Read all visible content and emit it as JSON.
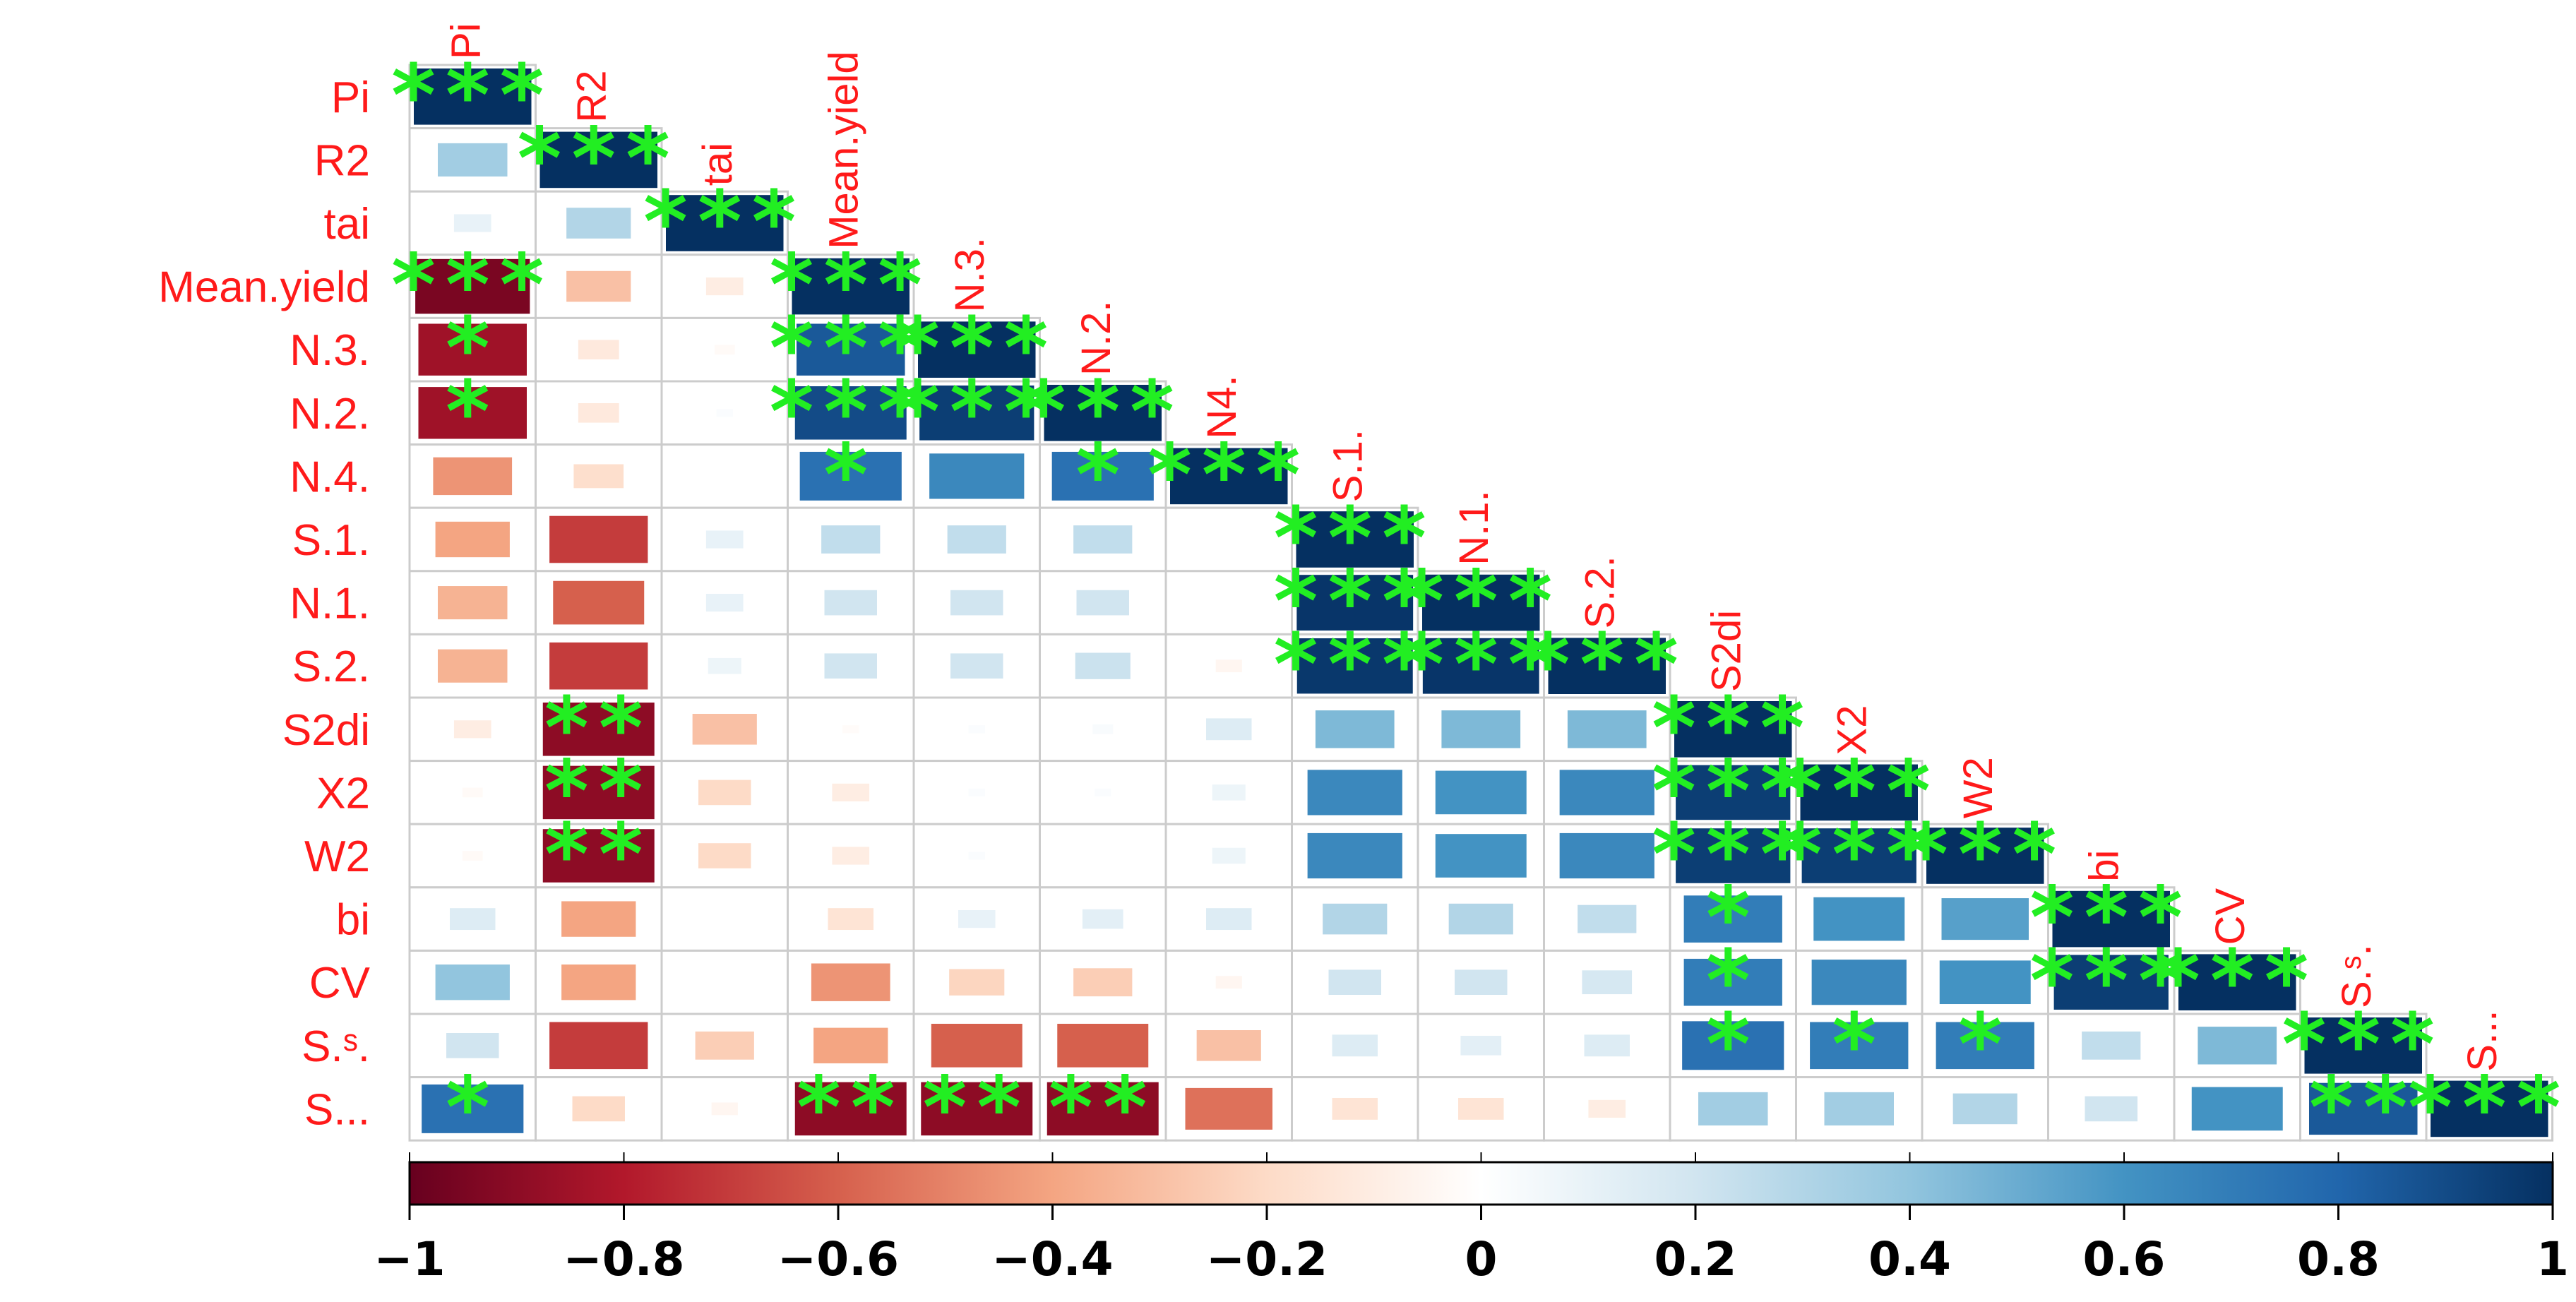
{
  "chart_data": {
    "type": "heatmap",
    "title": "",
    "variables": [
      "Pi",
      "R2",
      "tai",
      "Mean.yield",
      "N.3.",
      "N.2.",
      "N.4.",
      "S.1.",
      "N.1.",
      "S.2.",
      "S2di",
      "X2",
      "W2",
      "bi",
      "CV",
      "S.ˢ.",
      "S..."
    ],
    "top_labels": [
      "Pi",
      "R2",
      "tai",
      "Mean.yield",
      "N.3.",
      "N.2.",
      "N4.",
      "S.1.",
      "N.1.",
      "S.2.",
      "S2di",
      "X2",
      "W2",
      "bi",
      "CV",
      "S.ˢ.",
      "S..."
    ],
    "matrix_lower": [
      [
        1
      ],
      [
        0.35,
        1
      ],
      [
        0.1,
        0.3,
        1
      ],
      [
        -0.95,
        -0.3,
        -0.1,
        1
      ],
      [
        -0.85,
        -0.12,
        -0.03,
        0.85,
        1
      ],
      [
        -0.85,
        -0.12,
        0.02,
        0.9,
        0.95,
        1
      ],
      [
        -0.45,
        -0.18,
        0.0,
        0.75,
        0.65,
        0.75,
        1
      ],
      [
        -0.4,
        -0.7,
        0.1,
        0.25,
        0.25,
        0.25,
        0.0,
        1
      ],
      [
        -0.35,
        -0.6,
        0.1,
        0.2,
        0.2,
        0.2,
        0.0,
        0.98,
        1
      ],
      [
        -0.35,
        -0.7,
        0.08,
        0.2,
        0.2,
        0.22,
        -0.05,
        0.97,
        0.98,
        1
      ],
      [
        -0.1,
        -0.9,
        -0.3,
        -0.02,
        0.02,
        0.03,
        0.15,
        0.45,
        0.45,
        0.45,
        1
      ],
      [
        -0.03,
        -0.9,
        -0.2,
        -0.1,
        0.02,
        0.02,
        0.08,
        0.65,
        0.6,
        0.65,
        0.95,
        1
      ],
      [
        -0.03,
        -0.9,
        -0.2,
        -0.1,
        0.02,
        0.0,
        0.08,
        0.65,
        0.6,
        0.65,
        0.95,
        0.95,
        1
      ],
      [
        0.15,
        -0.4,
        0.0,
        -0.15,
        0.1,
        0.12,
        0.15,
        0.3,
        0.3,
        0.25,
        0.7,
        0.6,
        0.55,
        1
      ],
      [
        0.4,
        -0.4,
        0.0,
        -0.45,
        -0.22,
        -0.25,
        -0.05,
        0.2,
        0.2,
        0.18,
        0.7,
        0.65,
        0.6,
        0.95,
        1
      ],
      [
        0.2,
        -0.7,
        -0.25,
        -0.4,
        -0.6,
        -0.6,
        -0.3,
        0.15,
        0.12,
        0.15,
        0.75,
        0.7,
        0.7,
        0.25,
        0.45,
        1
      ],
      [
        0.75,
        -0.2,
        -0.05,
        -0.9,
        -0.9,
        -0.9,
        -0.55,
        -0.15,
        -0.15,
        -0.1,
        0.35,
        0.35,
        0.3,
        0.2,
        0.6,
        0.85,
        1
      ]
    ],
    "significance": [
      {
        "row": 0,
        "col": 0,
        "stars": "***"
      },
      {
        "row": 1,
        "col": 1,
        "stars": "***"
      },
      {
        "row": 2,
        "col": 2,
        "stars": "***"
      },
      {
        "row": 3,
        "col": 0,
        "stars": "***"
      },
      {
        "row": 3,
        "col": 3,
        "stars": "***"
      },
      {
        "row": 4,
        "col": 0,
        "stars": "*"
      },
      {
        "row": 4,
        "col": 3,
        "stars": "***"
      },
      {
        "row": 4,
        "col": 4,
        "stars": "***"
      },
      {
        "row": 5,
        "col": 0,
        "stars": "*"
      },
      {
        "row": 5,
        "col": 3,
        "stars": "***"
      },
      {
        "row": 5,
        "col": 4,
        "stars": "***"
      },
      {
        "row": 5,
        "col": 5,
        "stars": "***"
      },
      {
        "row": 6,
        "col": 3,
        "stars": "*"
      },
      {
        "row": 6,
        "col": 5,
        "stars": "*"
      },
      {
        "row": 6,
        "col": 6,
        "stars": "***"
      },
      {
        "row": 7,
        "col": 7,
        "stars": "***"
      },
      {
        "row": 8,
        "col": 7,
        "stars": "***"
      },
      {
        "row": 8,
        "col": 8,
        "stars": "***"
      },
      {
        "row": 9,
        "col": 7,
        "stars": "***"
      },
      {
        "row": 9,
        "col": 8,
        "stars": "***"
      },
      {
        "row": 9,
        "col": 9,
        "stars": "***"
      },
      {
        "row": 10,
        "col": 1,
        "stars": "**"
      },
      {
        "row": 10,
        "col": 10,
        "stars": "***"
      },
      {
        "row": 11,
        "col": 1,
        "stars": "**"
      },
      {
        "row": 11,
        "col": 10,
        "stars": "***"
      },
      {
        "row": 11,
        "col": 11,
        "stars": "***"
      },
      {
        "row": 12,
        "col": 1,
        "stars": "**"
      },
      {
        "row": 12,
        "col": 10,
        "stars": "***"
      },
      {
        "row": 12,
        "col": 11,
        "stars": "***"
      },
      {
        "row": 12,
        "col": 12,
        "stars": "***"
      },
      {
        "row": 13,
        "col": 10,
        "stars": "*"
      },
      {
        "row": 13,
        "col": 13,
        "stars": "***"
      },
      {
        "row": 14,
        "col": 10,
        "stars": "*"
      },
      {
        "row": 14,
        "col": 13,
        "stars": "***"
      },
      {
        "row": 14,
        "col": 14,
        "stars": "***"
      },
      {
        "row": 15,
        "col": 10,
        "stars": "*"
      },
      {
        "row": 15,
        "col": 11,
        "stars": "*"
      },
      {
        "row": 15,
        "col": 12,
        "stars": "*"
      },
      {
        "row": 15,
        "col": 15,
        "stars": "***"
      },
      {
        "row": 16,
        "col": 0,
        "stars": "*"
      },
      {
        "row": 16,
        "col": 3,
        "stars": "**"
      },
      {
        "row": 16,
        "col": 4,
        "stars": "**"
      },
      {
        "row": 16,
        "col": 5,
        "stars": "**"
      },
      {
        "row": 16,
        "col": 15,
        "stars": "**"
      },
      {
        "row": 16,
        "col": 16,
        "stars": "***"
      }
    ],
    "colorbar": {
      "range": [
        -1,
        1
      ],
      "ticks": [
        "−1",
        "−0.8",
        "−0.6",
        "−0.4",
        "−0.2",
        "0",
        "0.2",
        "0.4",
        "0.6",
        "0.8",
        "1"
      ],
      "tick_values": [
        -1,
        -0.8,
        -0.6,
        -0.4,
        -0.2,
        0,
        0.2,
        0.4,
        0.6,
        0.8,
        1
      ]
    },
    "colors": {
      "negative_end": "#67001f",
      "neutral": "#ffffff",
      "positive_end": "#053061",
      "label_text": "#ff1a1a",
      "star": "#22ee22",
      "grid": "#cccccc"
    }
  }
}
